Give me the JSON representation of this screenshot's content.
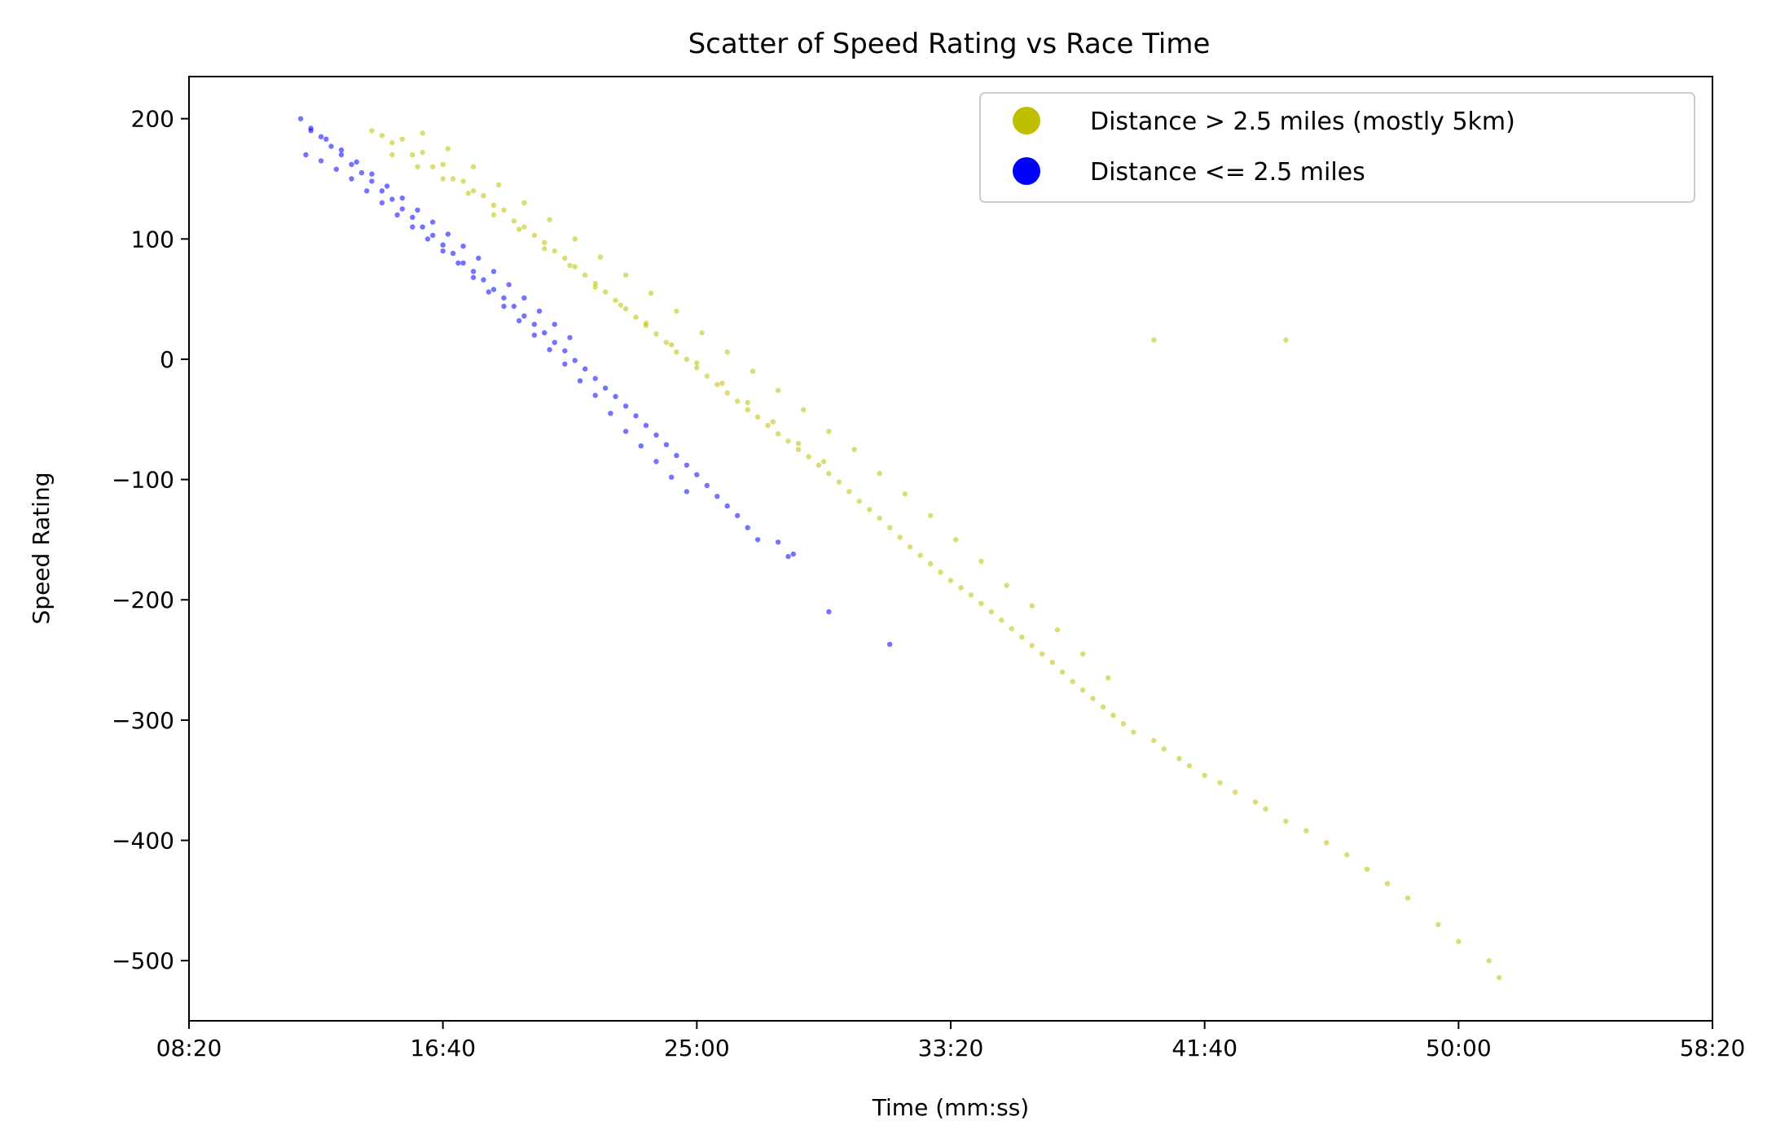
{
  "chart_data": {
    "type": "scatter",
    "title": "Scatter of Speed Rating vs Race Time",
    "xlabel": "Time (mm:ss)",
    "ylabel": "Speed Rating",
    "xlim_seconds": [
      500,
      3500
    ],
    "ylim": [
      -550,
      235
    ],
    "x_ticks": [
      {
        "value": 500,
        "label": "08:20"
      },
      {
        "value": 1000,
        "label": "16:40"
      },
      {
        "value": 1500,
        "label": "25:00"
      },
      {
        "value": 2000,
        "label": "33:20"
      },
      {
        "value": 2500,
        "label": "41:40"
      },
      {
        "value": 3000,
        "label": "50:00"
      },
      {
        "value": 3500,
        "label": "58:20"
      }
    ],
    "y_ticks": [
      {
        "value": 200,
        "label": "200"
      },
      {
        "value": 100,
        "label": "100"
      },
      {
        "value": 0,
        "label": "0"
      },
      {
        "value": -100,
        "label": "−100"
      },
      {
        "value": -200,
        "label": "−200"
      },
      {
        "value": -300,
        "label": "−300"
      },
      {
        "value": -400,
        "label": "−400"
      },
      {
        "value": -500,
        "label": "−500"
      }
    ],
    "grid": false,
    "legend_position": "top-right",
    "series": [
      {
        "name": "Distance > 2.5 miles (mostly 5km)",
        "color": "#bfbf00",
        "points": [
          [
            860,
            190
          ],
          [
            880,
            186
          ],
          [
            900,
            180
          ],
          [
            920,
            183
          ],
          [
            940,
            170
          ],
          [
            960,
            172
          ],
          [
            980,
            160
          ],
          [
            1000,
            162
          ],
          [
            1020,
            150
          ],
          [
            1040,
            148
          ],
          [
            1060,
            140
          ],
          [
            1080,
            136
          ],
          [
            1100,
            128
          ],
          [
            1120,
            124
          ],
          [
            1140,
            115
          ],
          [
            1160,
            110
          ],
          [
            1180,
            103
          ],
          [
            1200,
            97
          ],
          [
            1220,
            90
          ],
          [
            1240,
            84
          ],
          [
            1260,
            77
          ],
          [
            1280,
            70
          ],
          [
            1300,
            63
          ],
          [
            1320,
            56
          ],
          [
            1340,
            49
          ],
          [
            1360,
            42
          ],
          [
            1380,
            35
          ],
          [
            1400,
            28
          ],
          [
            1420,
            21
          ],
          [
            1440,
            14
          ],
          [
            1460,
            6
          ],
          [
            1480,
            0
          ],
          [
            1500,
            -7
          ],
          [
            1520,
            -14
          ],
          [
            1540,
            -21
          ],
          [
            1560,
            -28
          ],
          [
            1580,
            -35
          ],
          [
            1600,
            -42
          ],
          [
            1620,
            -48
          ],
          [
            1640,
            -55
          ],
          [
            1660,
            -62
          ],
          [
            1680,
            -68
          ],
          [
            1700,
            -75
          ],
          [
            1720,
            -81
          ],
          [
            1740,
            -88
          ],
          [
            1760,
            -95
          ],
          [
            1780,
            -102
          ],
          [
            1800,
            -110
          ],
          [
            1820,
            -118
          ],
          [
            1840,
            -125
          ],
          [
            1860,
            -132
          ],
          [
            1880,
            -140
          ],
          [
            1900,
            -148
          ],
          [
            1920,
            -156
          ],
          [
            1940,
            -163
          ],
          [
            1960,
            -170
          ],
          [
            1980,
            -177
          ],
          [
            2000,
            -184
          ],
          [
            2020,
            -190
          ],
          [
            2040,
            -196
          ],
          [
            2060,
            -203
          ],
          [
            2080,
            -210
          ],
          [
            2100,
            -217
          ],
          [
            2120,
            -224
          ],
          [
            2140,
            -231
          ],
          [
            2160,
            -238
          ],
          [
            2180,
            -245
          ],
          [
            2200,
            -252
          ],
          [
            2220,
            -260
          ],
          [
            2240,
            -268
          ],
          [
            2260,
            -275
          ],
          [
            2280,
            -282
          ],
          [
            2300,
            -289
          ],
          [
            2320,
            -296
          ],
          [
            2340,
            -303
          ],
          [
            2360,
            -310
          ],
          [
            2400,
            -317
          ],
          [
            2420,
            -324
          ],
          [
            2450,
            -332
          ],
          [
            2470,
            -338
          ],
          [
            2500,
            -346
          ],
          [
            2530,
            -352
          ],
          [
            2560,
            -360
          ],
          [
            2600,
            -368
          ],
          [
            2620,
            -374
          ],
          [
            2660,
            -384
          ],
          [
            2700,
            -392
          ],
          [
            2740,
            -402
          ],
          [
            2780,
            -412
          ],
          [
            2820,
            -424
          ],
          [
            2860,
            -436
          ],
          [
            2900,
            -448
          ],
          [
            2960,
            -470
          ],
          [
            3000,
            -484
          ],
          [
            3060,
            -500
          ],
          [
            3080,
            -514
          ],
          [
            900,
            170
          ],
          [
            950,
            160
          ],
          [
            1000,
            150
          ],
          [
            1050,
            138
          ],
          [
            1100,
            120
          ],
          [
            1150,
            108
          ],
          [
            1200,
            92
          ],
          [
            1250,
            78
          ],
          [
            1300,
            60
          ],
          [
            1350,
            45
          ],
          [
            1400,
            30
          ],
          [
            1450,
            12
          ],
          [
            1500,
            -3
          ],
          [
            1550,
            -20
          ],
          [
            1600,
            -36
          ],
          [
            1650,
            -52
          ],
          [
            1700,
            -70
          ],
          [
            1750,
            -85
          ],
          [
            960,
            188
          ],
          [
            1010,
            175
          ],
          [
            1060,
            160
          ],
          [
            1110,
            145
          ],
          [
            1160,
            130
          ],
          [
            1210,
            116
          ],
          [
            1260,
            100
          ],
          [
            1310,
            85
          ],
          [
            1360,
            70
          ],
          [
            1410,
            55
          ],
          [
            1460,
            40
          ],
          [
            1510,
            22
          ],
          [
            1560,
            6
          ],
          [
            1610,
            -10
          ],
          [
            1660,
            -26
          ],
          [
            1710,
            -42
          ],
          [
            1760,
            -60
          ],
          [
            1810,
            -75
          ],
          [
            1860,
            -95
          ],
          [
            1910,
            -112
          ],
          [
            1960,
            -130
          ],
          [
            2010,
            -150
          ],
          [
            2060,
            -168
          ],
          [
            2110,
            -188
          ],
          [
            2160,
            -205
          ],
          [
            2210,
            -225
          ],
          [
            2260,
            -245
          ],
          [
            2310,
            -265
          ],
          [
            2400,
            16
          ],
          [
            2660,
            16
          ]
        ]
      },
      {
        "name": "Distance <= 2.5 miles",
        "color": "#0000ff",
        "points": [
          [
            720,
            200
          ],
          [
            740,
            190
          ],
          [
            760,
            185
          ],
          [
            780,
            177
          ],
          [
            800,
            170
          ],
          [
            820,
            162
          ],
          [
            840,
            155
          ],
          [
            860,
            148
          ],
          [
            880,
            140
          ],
          [
            900,
            133
          ],
          [
            920,
            125
          ],
          [
            940,
            118
          ],
          [
            960,
            110
          ],
          [
            980,
            103
          ],
          [
            1000,
            95
          ],
          [
            1020,
            88
          ],
          [
            1040,
            80
          ],
          [
            1060,
            73
          ],
          [
            1080,
            66
          ],
          [
            1100,
            58
          ],
          [
            1120,
            51
          ],
          [
            1140,
            44
          ],
          [
            1160,
            36
          ],
          [
            1180,
            29
          ],
          [
            1200,
            22
          ],
          [
            1220,
            14
          ],
          [
            1240,
            7
          ],
          [
            1260,
            -1
          ],
          [
            1280,
            -8
          ],
          [
            1300,
            -16
          ],
          [
            1320,
            -24
          ],
          [
            1340,
            -31
          ],
          [
            1360,
            -39
          ],
          [
            1380,
            -47
          ],
          [
            1400,
            -55
          ],
          [
            1420,
            -63
          ],
          [
            1440,
            -71
          ],
          [
            1460,
            -80
          ],
          [
            1480,
            -88
          ],
          [
            1500,
            -96
          ],
          [
            1520,
            -105
          ],
          [
            1540,
            -114
          ],
          [
            1560,
            -122
          ],
          [
            1580,
            -130
          ],
          [
            1600,
            -140
          ],
          [
            1620,
            -150
          ],
          [
            1660,
            -152
          ],
          [
            1690,
            -162
          ],
          [
            730,
            170
          ],
          [
            760,
            165
          ],
          [
            790,
            158
          ],
          [
            820,
            150
          ],
          [
            850,
            140
          ],
          [
            880,
            130
          ],
          [
            910,
            120
          ],
          [
            940,
            110
          ],
          [
            970,
            100
          ],
          [
            1000,
            90
          ],
          [
            1030,
            80
          ],
          [
            1060,
            68
          ],
          [
            1090,
            56
          ],
          [
            1120,
            44
          ],
          [
            1150,
            32
          ],
          [
            1180,
            20
          ],
          [
            1210,
            8
          ],
          [
            1240,
            -4
          ],
          [
            1270,
            -18
          ],
          [
            1300,
            -30
          ],
          [
            1330,
            -45
          ],
          [
            1360,
            -60
          ],
          [
            1390,
            -72
          ],
          [
            1420,
            -85
          ],
          [
            1450,
            -98
          ],
          [
            1480,
            -110
          ],
          [
            740,
            192
          ],
          [
            770,
            183
          ],
          [
            800,
            174
          ],
          [
            830,
            164
          ],
          [
            860,
            154
          ],
          [
            890,
            144
          ],
          [
            920,
            134
          ],
          [
            950,
            124
          ],
          [
            980,
            114
          ],
          [
            1010,
            104
          ],
          [
            1040,
            94
          ],
          [
            1070,
            84
          ],
          [
            1100,
            73
          ],
          [
            1130,
            62
          ],
          [
            1160,
            51
          ],
          [
            1190,
            40
          ],
          [
            1220,
            29
          ],
          [
            1250,
            18
          ],
          [
            1680,
            -164
          ],
          [
            1760,
            -210
          ],
          [
            1880,
            -237
          ]
        ]
      }
    ]
  }
}
